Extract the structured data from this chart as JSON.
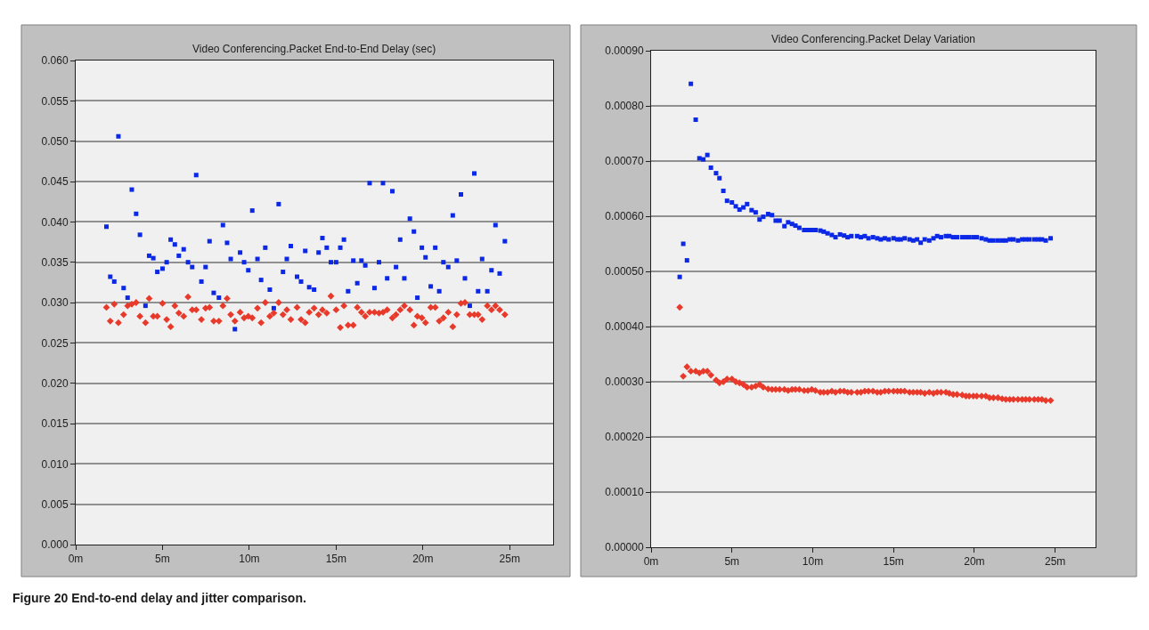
{
  "chart_data": [
    {
      "type": "scatter",
      "title": "Video Conferencing.Packet End-to-End Delay (sec)",
      "annotations": [
        "Figure 20 End-to-end delay and jitter comparison."
      ],
      "x": [
        1.77,
        1.99,
        2.22,
        2.46,
        2.76,
        2.99,
        3.23,
        3.48,
        3.7,
        4.02,
        4.23,
        4.47,
        4.7,
        5.0,
        5.24,
        5.47,
        5.71,
        5.94,
        6.22,
        6.47,
        6.71,
        6.94,
        7.24,
        7.48,
        7.71,
        7.95,
        8.25,
        8.48,
        8.72,
        8.93,
        9.17,
        9.47,
        9.7,
        9.94,
        10.17,
        10.47,
        10.68,
        10.92,
        11.18,
        11.41,
        11.69,
        11.94,
        12.16,
        12.39,
        12.75,
        12.98,
        13.22,
        13.45,
        13.73,
        13.99,
        14.21,
        14.46,
        14.7,
        15.0,
        15.24,
        15.45,
        15.69,
        15.99,
        16.22,
        16.46,
        16.68,
        16.93,
        17.21,
        17.47,
        17.7,
        17.94,
        18.24,
        18.45,
        18.69,
        18.93,
        19.25,
        19.48,
        19.68,
        19.94,
        20.15,
        20.45,
        20.71,
        20.94,
        21.18,
        21.46,
        21.72,
        21.95,
        22.19,
        22.42,
        22.7,
        22.96,
        23.18,
        23.41,
        23.71,
        23.95,
        24.18,
        24.42,
        24.72
      ],
      "series": [
        {
          "color": "#0a28e6",
          "marker": "square",
          "values": [
            0.0394,
            0.0332,
            0.0326,
            0.0506,
            0.0318,
            0.0306,
            0.044,
            0.041,
            0.0384,
            0.0296,
            0.0358,
            0.0355,
            0.0338,
            0.0342,
            0.035,
            0.0378,
            0.0372,
            0.0358,
            0.0366,
            0.035,
            0.0344,
            0.0458,
            0.0326,
            0.0344,
            0.0376,
            0.0312,
            0.0306,
            0.0396,
            0.0374,
            0.0354,
            0.0267,
            0.0362,
            0.035,
            0.034,
            0.0414,
            0.0354,
            0.0328,
            0.0368,
            0.0316,
            0.0293,
            0.0422,
            0.0338,
            0.0354,
            0.037,
            0.0332,
            0.0326,
            0.0364,
            0.0319,
            0.0316,
            0.0362,
            0.038,
            0.0368,
            0.035,
            0.035,
            0.0368,
            0.0378,
            0.0314,
            0.0352,
            0.0324,
            0.0352,
            0.0346,
            0.0448,
            0.0318,
            0.035,
            0.0448,
            0.033,
            0.0438,
            0.0344,
            0.0378,
            0.033,
            0.0404,
            0.0388,
            0.0306,
            0.0368,
            0.0356,
            0.032,
            0.0368,
            0.0314,
            0.035,
            0.0344,
            0.0408,
            0.0352,
            0.0434,
            0.033,
            0.0296,
            0.046,
            0.0314,
            0.0354,
            0.0314,
            0.034,
            0.0396,
            0.0336,
            0.0376
          ]
        },
        {
          "color": "#e8392a",
          "marker": "diamond",
          "values": [
            0.0294,
            0.0277,
            0.0298,
            0.0275,
            0.0285,
            0.0296,
            0.0298,
            0.03,
            0.0283,
            0.0275,
            0.0305,
            0.0283,
            0.0283,
            0.0299,
            0.0279,
            0.027,
            0.0296,
            0.0287,
            0.0283,
            0.0307,
            0.0291,
            0.0291,
            0.0279,
            0.0293,
            0.0294,
            0.0277,
            0.0277,
            0.0296,
            0.0305,
            0.0285,
            0.0277,
            0.0288,
            0.0281,
            0.0283,
            0.0281,
            0.0293,
            0.0275,
            0.03,
            0.0283,
            0.0287,
            0.03,
            0.0285,
            0.0291,
            0.0279,
            0.0294,
            0.0279,
            0.0275,
            0.0288,
            0.0293,
            0.0285,
            0.0291,
            0.0287,
            0.0308,
            0.0291,
            0.0269,
            0.0296,
            0.0272,
            0.0272,
            0.0294,
            0.0288,
            0.0283,
            0.0288,
            0.0288,
            0.0287,
            0.0288,
            0.0291,
            0.0281,
            0.0285,
            0.0291,
            0.0296,
            0.0291,
            0.0272,
            0.0283,
            0.0281,
            0.0275,
            0.0294,
            0.0294,
            0.0277,
            0.0281,
            0.0288,
            0.027,
            0.0285,
            0.0299,
            0.03,
            0.0285,
            0.0285,
            0.0285,
            0.0279,
            0.0296,
            0.0291,
            0.0296,
            0.0291,
            0.0285
          ]
        }
      ],
      "xlim": [
        0,
        27.5
      ],
      "xticks": [
        {
          "value": 0,
          "label": "0m"
        },
        {
          "value": 5,
          "label": "5m"
        },
        {
          "value": 10,
          "label": "10m"
        },
        {
          "value": 15,
          "label": "15m"
        },
        {
          "value": 20,
          "label": "20m"
        },
        {
          "value": 25,
          "label": "25m"
        }
      ],
      "ylim": [
        0,
        0.06
      ],
      "yticks": [
        {
          "value": 0,
          "label": "0.000"
        },
        {
          "value": 0.005,
          "label": "0.005"
        },
        {
          "value": 0.01,
          "label": "0.010"
        },
        {
          "value": 0.015,
          "label": "0.015"
        },
        {
          "value": 0.02,
          "label": "0.020"
        },
        {
          "value": 0.025,
          "label": "0.025"
        },
        {
          "value": 0.03,
          "label": "0.030"
        },
        {
          "value": 0.035,
          "label": "0.035"
        },
        {
          "value": 0.04,
          "label": "0.040"
        },
        {
          "value": 0.045,
          "label": "0.045"
        },
        {
          "value": 0.05,
          "label": "0.050"
        },
        {
          "value": 0.055,
          "label": "0.055"
        },
        {
          "value": 0.06,
          "label": "0.060"
        }
      ],
      "grid": "y"
    },
    {
      "type": "scatter",
      "title": "Video Conferencing.Packet Delay Variation",
      "x": [
        1.77,
        1.99,
        2.22,
        2.46,
        2.76,
        2.99,
        3.23,
        3.48,
        3.7,
        4.02,
        4.23,
        4.47,
        4.7,
        5.0,
        5.24,
        5.47,
        5.71,
        5.94,
        6.22,
        6.47,
        6.71,
        6.94,
        7.24,
        7.48,
        7.71,
        7.95,
        8.25,
        8.48,
        8.72,
        8.93,
        9.17,
        9.47,
        9.7,
        9.94,
        10.17,
        10.47,
        10.68,
        10.92,
        11.18,
        11.41,
        11.69,
        11.94,
        12.16,
        12.39,
        12.75,
        12.98,
        13.22,
        13.45,
        13.73,
        13.99,
        14.21,
        14.46,
        14.7,
        15.0,
        15.24,
        15.45,
        15.69,
        15.99,
        16.22,
        16.46,
        16.68,
        16.93,
        17.21,
        17.47,
        17.7,
        17.94,
        18.24,
        18.45,
        18.69,
        18.93,
        19.25,
        19.48,
        19.68,
        19.94,
        20.15,
        20.45,
        20.71,
        20.94,
        21.18,
        21.46,
        21.72,
        21.95,
        22.19,
        22.42,
        22.7,
        22.96,
        23.18,
        23.41,
        23.71,
        23.95,
        24.18,
        24.42,
        24.72
      ],
      "series": [
        {
          "color": "#0a28e6",
          "marker": "square",
          "values": [
            0.00049,
            0.00055,
            0.00052,
            0.00084,
            0.000775,
            0.000705,
            0.000703,
            0.000711,
            0.000688,
            0.000678,
            0.000669,
            0.000646,
            0.000628,
            0.000625,
            0.000618,
            0.000612,
            0.000616,
            0.000622,
            0.000611,
            0.000607,
            0.000594,
            0.000599,
            0.000604,
            0.000602,
            0.000592,
            0.000592,
            0.000582,
            0.000589,
            0.000586,
            0.000583,
            0.000579,
            0.000575,
            0.000575,
            0.000575,
            0.000575,
            0.000574,
            0.000572,
            0.000569,
            0.000566,
            0.000562,
            0.000567,
            0.000565,
            0.000562,
            0.000564,
            0.000564,
            0.000562,
            0.000564,
            0.00056,
            0.000562,
            0.00056,
            0.000558,
            0.00056,
            0.000558,
            0.00056,
            0.000558,
            0.000558,
            0.00056,
            0.000558,
            0.000556,
            0.000558,
            0.000552,
            0.000558,
            0.000556,
            0.00056,
            0.000564,
            0.000562,
            0.000564,
            0.000564,
            0.000562,
            0.000562,
            0.000562,
            0.000562,
            0.000562,
            0.000562,
            0.000562,
            0.00056,
            0.000558,
            0.000556,
            0.000556,
            0.000556,
            0.000556,
            0.000556,
            0.000558,
            0.000558,
            0.000556,
            0.000558,
            0.000558,
            0.000558,
            0.000558,
            0.000558,
            0.000558,
            0.000556,
            0.00056
          ]
        },
        {
          "color": "#e8392a",
          "marker": "diamond",
          "values": [
            0.000435,
            0.00031,
            0.000327,
            0.000319,
            0.000319,
            0.000316,
            0.000319,
            0.000319,
            0.000312,
            0.000303,
            0.000298,
            0.0003,
            0.000305,
            0.000305,
            0.0003,
            0.000298,
            0.000295,
            0.00029,
            0.00029,
            0.000292,
            0.000295,
            0.00029,
            0.000287,
            0.000286,
            0.000286,
            0.000286,
            0.000286,
            0.000284,
            0.000286,
            0.000286,
            0.000286,
            0.000284,
            0.000284,
            0.000286,
            0.000284,
            0.000281,
            0.000281,
            0.000281,
            0.000283,
            0.000281,
            0.000283,
            0.000283,
            0.000281,
            0.000281,
            0.000281,
            0.000281,
            0.000283,
            0.000283,
            0.000283,
            0.000281,
            0.000281,
            0.000283,
            0.000283,
            0.000283,
            0.000283,
            0.000283,
            0.000283,
            0.000281,
            0.000281,
            0.000281,
            0.000281,
            0.000279,
            0.000281,
            0.000279,
            0.000281,
            0.000281,
            0.000281,
            0.000279,
            0.000277,
            0.000277,
            0.000276,
            0.000274,
            0.000274,
            0.000274,
            0.000274,
            0.000274,
            0.000274,
            0.000271,
            0.000271,
            0.000271,
            0.000269,
            0.000268,
            0.000268,
            0.000268,
            0.000268,
            0.000268,
            0.000268,
            0.000268,
            0.000268,
            0.000268,
            0.000268,
            0.000266,
            0.000266
          ]
        }
      ],
      "xlim": [
        0,
        27.5
      ],
      "xticks": [
        {
          "value": 0,
          "label": "0m"
        },
        {
          "value": 5,
          "label": "5m"
        },
        {
          "value": 10,
          "label": "10m"
        },
        {
          "value": 15,
          "label": "15m"
        },
        {
          "value": 20,
          "label": "20m"
        },
        {
          "value": 25,
          "label": "25m"
        }
      ],
      "ylim": [
        0,
        0.0009
      ],
      "yticks": [
        {
          "value": 0,
          "label": "0.00000"
        },
        {
          "value": 0.0001,
          "label": "0.00010"
        },
        {
          "value": 0.0002,
          "label": "0.00020"
        },
        {
          "value": 0.0003,
          "label": "0.00030"
        },
        {
          "value": 0.0004,
          "label": "0.00040"
        },
        {
          "value": 0.0005,
          "label": "0.00050"
        },
        {
          "value": 0.0006,
          "label": "0.00060"
        },
        {
          "value": 0.0007,
          "label": "0.00070"
        },
        {
          "value": 0.0008,
          "label": "0.00080"
        },
        {
          "value": 0.0009,
          "label": "0.00090"
        }
      ],
      "grid": "y"
    }
  ]
}
